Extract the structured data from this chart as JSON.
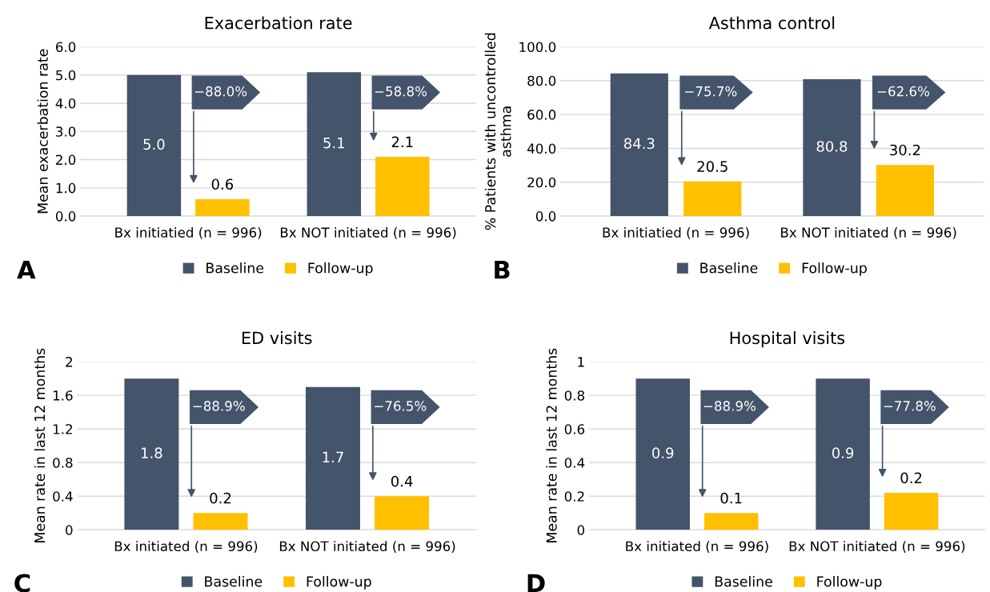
{
  "chart_data": [
    {
      "type": "bar",
      "title": "Exacerbation rate",
      "ylabel": "Mean exacerbation rate",
      "categories": [
        "Bx initiatied (n = 996)",
        "Bx NOT initiated (n = 996)"
      ],
      "series": [
        {
          "name": "Baseline",
          "color": "#44546a",
          "values": [
            5.0,
            5.1
          ],
          "value_labels": [
            "5.0",
            "5.1"
          ]
        },
        {
          "name": "Follow-up",
          "color": "#ffc000",
          "values": [
            0.6,
            2.1
          ],
          "value_labels": [
            "0.6",
            "2.1"
          ]
        }
      ],
      "ylim": [
        0,
        6
      ],
      "yticks": [
        {
          "value": 0,
          "label": "0.0"
        },
        {
          "value": 1,
          "label": "1.0"
        },
        {
          "value": 2,
          "label": "2.0"
        },
        {
          "value": 3,
          "label": "3.0"
        },
        {
          "value": 4,
          "label": "4.0"
        },
        {
          "value": 5,
          "label": "5.0"
        },
        {
          "value": 6,
          "label": "6.0"
        }
      ],
      "grid": "y",
      "legend": "bottom",
      "annotations": [
        "−88.0%",
        "−58.8%",
        "A"
      ]
    },
    {
      "type": "bar",
      "title": "Asthma control",
      "ylabel": "% Patients with uncontrolled\nasthma",
      "categories": [
        "Bx initiatied (n = 996)",
        "Bx NOT initiated (n = 996)"
      ],
      "series": [
        {
          "name": "Baseline",
          "color": "#44546a",
          "values": [
            84.3,
            80.8
          ],
          "value_labels": [
            "84.3",
            "80.8"
          ]
        },
        {
          "name": "Follow-up",
          "color": "#ffc000",
          "values": [
            20.5,
            30.2
          ],
          "value_labels": [
            "20.5",
            "30.2"
          ]
        }
      ],
      "ylim": [
        0,
        100
      ],
      "yticks": [
        {
          "value": 0,
          "label": "0.0"
        },
        {
          "value": 20,
          "label": "20.0"
        },
        {
          "value": 40,
          "label": "40.0"
        },
        {
          "value": 60,
          "label": "60.0"
        },
        {
          "value": 80,
          "label": "80.0"
        },
        {
          "value": 100,
          "label": "100.0"
        }
      ],
      "grid": "y",
      "legend": "bottom",
      "annotations": [
        "−75.7%",
        "−62.6%",
        "B"
      ]
    },
    {
      "type": "bar",
      "title": "ED visits",
      "ylabel": "Mean rate in last 12 months",
      "categories": [
        "Bx initiated (n = 996)",
        "Bx NOT initiated (n = 996)"
      ],
      "series": [
        {
          "name": "Baseline",
          "color": "#44546a",
          "values": [
            1.8,
            1.7
          ],
          "value_labels": [
            "1.8",
            "1.7"
          ]
        },
        {
          "name": "Follow-up",
          "color": "#ffc000",
          "values": [
            0.2,
            0.4
          ],
          "value_labels": [
            "0.2",
            "0.4"
          ]
        }
      ],
      "ylim": [
        0,
        2
      ],
      "yticks": [
        0,
        0.4,
        0.8,
        1.2,
        1.6,
        2
      ],
      "grid": "y",
      "legend": "bottom",
      "annotations": [
        "−88.9%",
        "−76.5%",
        "C"
      ]
    },
    {
      "type": "bar",
      "title": "Hospital visits",
      "ylabel": "Mean rate in last 12 months",
      "categories": [
        "Bx initiated (n = 996)",
        "Bx NOT initiated (n = 996)"
      ],
      "series": [
        {
          "name": "Baseline",
          "color": "#44546a",
          "values": [
            0.9,
            0.9
          ],
          "value_labels": [
            "0.9",
            "0.9"
          ]
        },
        {
          "name": "Follow-up",
          "color": "#ffc000",
          "values": [
            0.1,
            0.22
          ],
          "value_labels": [
            "0.1",
            "0.2"
          ]
        }
      ],
      "ylim": [
        0,
        1
      ],
      "yticks": [
        0,
        0.2,
        0.4,
        0.6,
        0.8,
        1
      ],
      "grid": "y",
      "legend": "bottom",
      "annotations": [
        "−88.9%",
        "−77.8%",
        "D"
      ]
    }
  ]
}
